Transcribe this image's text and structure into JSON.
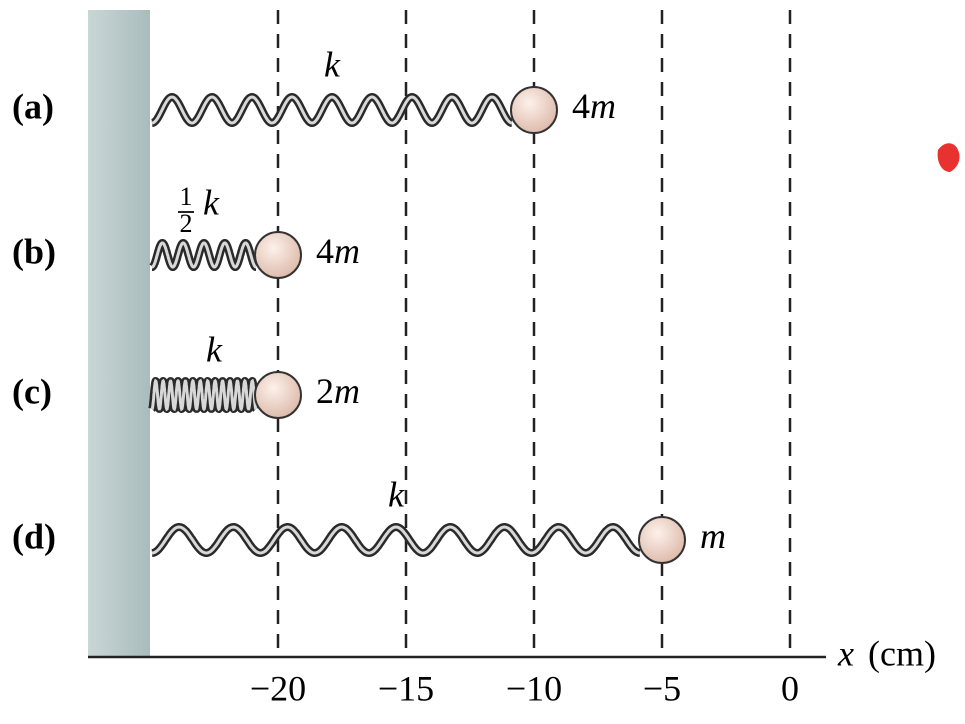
{
  "axis": {
    "symbol": "x",
    "unit": "(cm)",
    "ticks": [
      {
        "value": -20,
        "label": "−20"
      },
      {
        "value": -15,
        "label": "−15"
      },
      {
        "value": -10,
        "label": "−10"
      },
      {
        "value": -5,
        "label": "−5"
      },
      {
        "value": 0,
        "label": "0"
      }
    ]
  },
  "rows": [
    {
      "label": "(a)",
      "spring": {
        "symbol": "k"
      },
      "mass": {
        "coefficient": "4",
        "symbol": "m"
      },
      "mass_x": -10
    },
    {
      "label": "(b)",
      "spring": {
        "numerator": "1",
        "denominator": "2",
        "symbol": "k"
      },
      "mass": {
        "coefficient": "4",
        "symbol": "m"
      },
      "mass_x": -20
    },
    {
      "label": "(c)",
      "spring": {
        "symbol": "k"
      },
      "mass": {
        "coefficient": "2",
        "symbol": "m"
      },
      "mass_x": -20
    },
    {
      "label": "(d)",
      "spring": {
        "symbol": "k"
      },
      "mass": {
        "symbol": "m"
      },
      "mass_x": -5
    }
  ]
}
